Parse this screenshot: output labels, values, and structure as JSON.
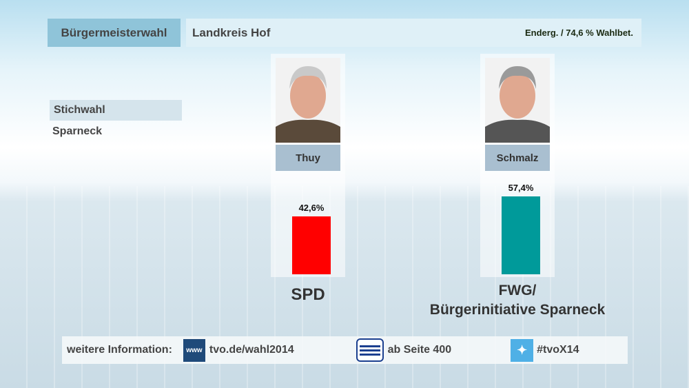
{
  "header": {
    "election": "Bürgermeisterwahl",
    "region": "Landkreis Hof",
    "status": "Enderg. / 74,6 % Wahlbet."
  },
  "subheader": {
    "type": "Stichwahl",
    "municipality": "Sparneck"
  },
  "chart_data": {
    "type": "bar",
    "title": "Stichwahl Sparneck",
    "categories": [
      "Thuy",
      "Schmalz"
    ],
    "parties": [
      "SPD",
      "FWG/ Bürgerinitiative Sparneck"
    ],
    "party_lines": [
      [
        "SPD"
      ],
      [
        "FWG/",
        "Bürgerinitiative Sparneck"
      ]
    ],
    "values": [
      42.6,
      57.4
    ],
    "labels": [
      "42,6%",
      "57,4%"
    ],
    "colors": [
      "#ff0000",
      "#009a9a"
    ],
    "ylim": [
      0,
      100
    ],
    "unit": "%"
  },
  "footer": {
    "label": "weitere Information:",
    "web_icon": "www",
    "web": "tvo.de/wahl2014",
    "teletext": "ab Seite 400",
    "twitter": "#tvoX14"
  }
}
